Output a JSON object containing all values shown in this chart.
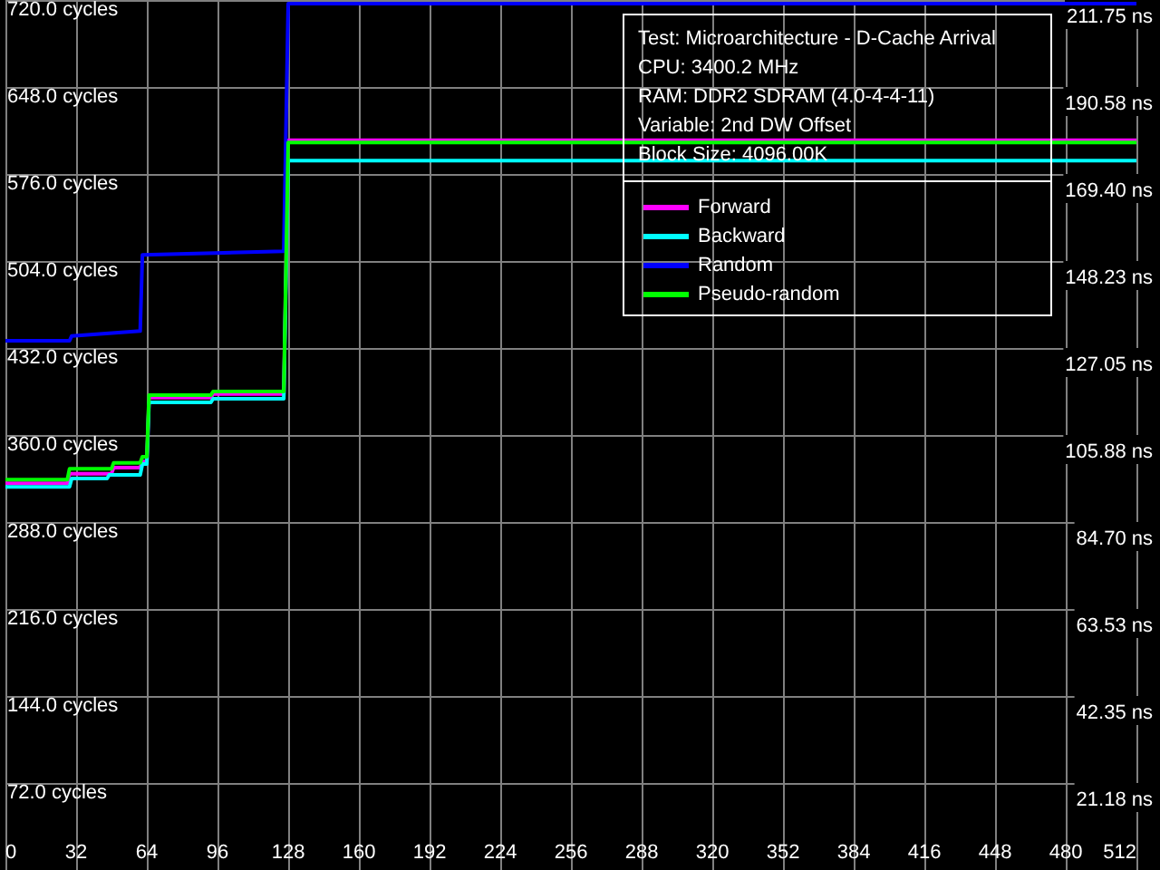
{
  "chart_data": {
    "type": "line",
    "annotations": [
      "Test: Microarchitecture - D-Cache Arrival",
      "CPU: 3400.2 MHz",
      "RAM: DDR2 SDRAM (4.0-4-4-11)",
      "Variable: 2nd DW Offset",
      "Block Size: 4096.00K"
    ],
    "series": [
      {
        "name": "Forward",
        "color": "#ff00ff",
        "x": [
          0,
          28,
          29,
          48,
          49,
          61,
          62,
          64,
          65,
          93,
          94,
          126,
          128,
          512
        ],
        "values": [
          320,
          320,
          328,
          328,
          333,
          333,
          338,
          338,
          391,
          391,
          394,
          394,
          604,
          604
        ]
      },
      {
        "name": "Backward",
        "color": "#00ffff",
        "x": [
          0,
          29,
          30,
          46,
          47,
          61,
          62,
          64,
          65,
          93,
          94,
          126,
          128,
          512
        ],
        "values": [
          317,
          317,
          324,
          324,
          327,
          327,
          336,
          336,
          387,
          387,
          390,
          390,
          587,
          587
        ]
      },
      {
        "name": "Random",
        "color": "#0000ff",
        "x": [
          0,
          29,
          30,
          61,
          62,
          126,
          128,
          512
        ],
        "values": [
          438,
          438,
          442,
          446,
          509,
          512,
          717,
          717
        ]
      },
      {
        "name": "Pseudo-random",
        "color": "#00ff00",
        "x": [
          0,
          28,
          29,
          48,
          49,
          61,
          62,
          64,
          65,
          93,
          94,
          126,
          128,
          512
        ],
        "values": [
          323,
          323,
          332,
          332,
          337,
          337,
          342,
          342,
          393,
          393,
          396,
          396,
          602,
          602
        ]
      }
    ],
    "xlim": [
      0,
      512
    ],
    "xticks": [
      0,
      32,
      64,
      96,
      128,
      160,
      192,
      224,
      256,
      288,
      320,
      352,
      384,
      416,
      448,
      480,
      512
    ],
    "ylim": [
      0,
      720
    ],
    "yticks": [
      {
        "value": 72,
        "label": "72.0 cycles"
      },
      {
        "value": 144,
        "label": "144.0 cycles"
      },
      {
        "value": 216,
        "label": "216.0 cycles"
      },
      {
        "value": 288,
        "label": "288.0 cycles"
      },
      {
        "value": 360,
        "label": "360.0 cycles"
      },
      {
        "value": 432,
        "label": "432.0 cycles"
      },
      {
        "value": 504,
        "label": "504.0 cycles"
      },
      {
        "value": 576,
        "label": "576.0 cycles"
      },
      {
        "value": 648,
        "label": "648.0 cycles"
      },
      {
        "value": 720,
        "label": "720.0 cycles"
      }
    ],
    "y2lim": [
      0,
      211.75
    ],
    "y2ticks": [
      {
        "value": 21.18,
        "label": "21.18 ns"
      },
      {
        "value": 42.35,
        "label": "42.35 ns"
      },
      {
        "value": 63.53,
        "label": "63.53 ns"
      },
      {
        "value": 84.7,
        "label": "84.70 ns"
      },
      {
        "value": 105.88,
        "label": "105.88 ns"
      },
      {
        "value": 127.05,
        "label": "127.05 ns"
      },
      {
        "value": 148.23,
        "label": "148.23 ns"
      },
      {
        "value": 169.4,
        "label": "169.40 ns"
      },
      {
        "value": 190.58,
        "label": "190.58 ns"
      },
      {
        "value": 211.75,
        "label": "211.75 ns"
      }
    ],
    "grid": true,
    "legend": "top right",
    "marker": "none",
    "line_style": "solid"
  }
}
